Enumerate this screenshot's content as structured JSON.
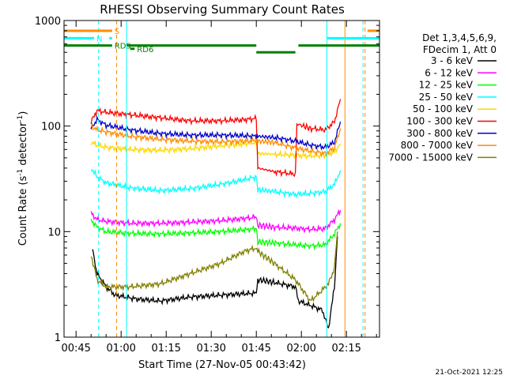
{
  "chart_data": {
    "type": "line",
    "title": "RHESSI Observing Summary Count Rates",
    "xlabel": "Start Time (27-Nov-05 00:43:42)",
    "ylabel_main": "Count Rate (s",
    "ylabel_sup1": "-1",
    "ylabel_mid": " detector",
    "ylabel_sup2": "-1",
    "ylabel_end": ")",
    "yscale": "log",
    "ylim": [
      1,
      1000
    ],
    "xlim_minutes": [
      -2,
      103
    ],
    "x_ticks": [
      {
        "t": 2,
        "label": "00:45"
      },
      {
        "t": 17,
        "label": "01:00"
      },
      {
        "t": 32,
        "label": "01:15"
      },
      {
        "t": 47,
        "label": "01:30"
      },
      {
        "t": 62,
        "label": "01:45"
      },
      {
        "t": 77,
        "label": "02:00"
      },
      {
        "t": 92,
        "label": "02:15"
      }
    ],
    "y_ticks": [
      {
        "v": 1,
        "label": "1"
      },
      {
        "v": 10,
        "label": "10"
      },
      {
        "v": 100,
        "label": "100"
      },
      {
        "v": 1000,
        "label": "1000"
      }
    ],
    "legend": {
      "placement": "right",
      "header1": "Det 1,3,4,5,6,9,",
      "header2": "FDecim 1, Att 0"
    },
    "series": [
      {
        "name": "3 - 6 keV",
        "color": "#000000",
        "values": [
          [
            7.5,
            7
          ],
          [
            9,
            4
          ],
          [
            12,
            3
          ],
          [
            15,
            2.5
          ],
          [
            22,
            2.3
          ],
          [
            30,
            2.2
          ],
          [
            40,
            2.4
          ],
          [
            50,
            2.5
          ],
          [
            60,
            2.6
          ],
          [
            62,
            2.6
          ],
          [
            62.5,
            3.5
          ],
          [
            68,
            3.3
          ],
          [
            75,
            3
          ],
          [
            76,
            2.2
          ],
          [
            80,
            2
          ],
          [
            84,
            1.8
          ],
          [
            86,
            1.2
          ],
          [
            88,
            3
          ],
          [
            89,
            9
          ]
        ]
      },
      {
        "name": "6 - 12 keV",
        "color": "#ff00ff",
        "values": [
          [
            7,
            15
          ],
          [
            9,
            13
          ],
          [
            12,
            12.5
          ],
          [
            20,
            12
          ],
          [
            30,
            12
          ],
          [
            40,
            12.3
          ],
          [
            50,
            12.7
          ],
          [
            60,
            13.5
          ],
          [
            62,
            13.8
          ],
          [
            62.5,
            11.5
          ],
          [
            68,
            11
          ],
          [
            75,
            10.8
          ],
          [
            80,
            10.5
          ],
          [
            85,
            10.7
          ],
          [
            88,
            13
          ],
          [
            90,
            16
          ]
        ]
      },
      {
        "name": "12 - 25 keV",
        "color": "#00ff00",
        "values": [
          [
            7,
            13
          ],
          [
            9,
            11
          ],
          [
            12,
            10
          ],
          [
            20,
            9.6
          ],
          [
            30,
            9.5
          ],
          [
            40,
            9.7
          ],
          [
            50,
            10
          ],
          [
            60,
            10.5
          ],
          [
            62,
            10.8
          ],
          [
            62.5,
            8
          ],
          [
            68,
            7.8
          ],
          [
            75,
            7.5
          ],
          [
            80,
            7.3
          ],
          [
            85,
            7.5
          ],
          [
            88,
            9.5
          ],
          [
            90,
            12
          ]
        ]
      },
      {
        "name": "25 - 50 keV",
        "color": "#00ffff",
        "values": [
          [
            7,
            40
          ],
          [
            9,
            33
          ],
          [
            12,
            29
          ],
          [
            20,
            26
          ],
          [
            30,
            24.5
          ],
          [
            40,
            25.5
          ],
          [
            50,
            28
          ],
          [
            58,
            31
          ],
          [
            62,
            33
          ],
          [
            62.5,
            25
          ],
          [
            68,
            24
          ],
          [
            75,
            22.5
          ],
          [
            80,
            23
          ],
          [
            85,
            24
          ],
          [
            88,
            28
          ],
          [
            90,
            38
          ]
        ]
      },
      {
        "name": "50 - 100 keV",
        "color": "#ffd700",
        "values": [
          [
            7,
            70
          ],
          [
            9,
            66
          ],
          [
            12,
            63
          ],
          [
            20,
            60
          ],
          [
            30,
            59
          ],
          [
            40,
            61
          ],
          [
            50,
            65
          ],
          [
            58,
            68
          ],
          [
            62,
            70
          ],
          [
            62.5,
            55
          ],
          [
            68,
            54
          ],
          [
            75,
            53
          ],
          [
            80,
            52
          ],
          [
            85,
            53
          ],
          [
            88,
            57
          ],
          [
            90,
            68
          ]
        ]
      },
      {
        "name": "100 - 300 keV",
        "color": "#ff0000",
        "values": [
          [
            7,
            110
          ],
          [
            9,
            140
          ],
          [
            12,
            135
          ],
          [
            20,
            128
          ],
          [
            30,
            120
          ],
          [
            40,
            112
          ],
          [
            50,
            112
          ],
          [
            58,
            115
          ],
          [
            62,
            118
          ],
          [
            62.5,
            40
          ],
          [
            68,
            37
          ],
          [
            75,
            35
          ],
          [
            75.5,
            105
          ],
          [
            80,
            95
          ],
          [
            85,
            92
          ],
          [
            88,
            110
          ],
          [
            90,
            180
          ]
        ]
      },
      {
        "name": "300 - 800 keV",
        "color": "#0000cd",
        "values": [
          [
            7,
            95
          ],
          [
            9,
            115
          ],
          [
            12,
            102
          ],
          [
            20,
            92
          ],
          [
            30,
            85
          ],
          [
            40,
            82
          ],
          [
            50,
            82
          ],
          [
            58,
            81
          ],
          [
            62,
            80
          ],
          [
            62.5,
            80
          ],
          [
            68,
            78
          ],
          [
            75,
            72
          ],
          [
            80,
            66
          ],
          [
            85,
            63
          ],
          [
            88,
            70
          ],
          [
            90,
            110
          ]
        ]
      },
      {
        "name": "800 - 7000 keV",
        "color": "#ff8c00",
        "values": [
          [
            7,
            100
          ],
          [
            9,
            92
          ],
          [
            12,
            88
          ],
          [
            20,
            80
          ],
          [
            30,
            75
          ],
          [
            40,
            72
          ],
          [
            50,
            71
          ],
          [
            58,
            72
          ],
          [
            62,
            73
          ],
          [
            62.5,
            72
          ],
          [
            68,
            70
          ],
          [
            75,
            62
          ],
          [
            80,
            58
          ],
          [
            85,
            55
          ],
          [
            88,
            62
          ],
          [
            90,
            95
          ]
        ]
      },
      {
        "name": "7000 - 15000 keV",
        "color": "#808000",
        "values": [
          [
            7,
            6
          ],
          [
            9,
            3.5
          ],
          [
            12,
            3
          ],
          [
            20,
            3
          ],
          [
            30,
            3.2
          ],
          [
            40,
            4
          ],
          [
            50,
            5
          ],
          [
            58,
            6.5
          ],
          [
            62,
            7
          ],
          [
            62.5,
            6.5
          ],
          [
            68,
            5
          ],
          [
            75,
            3.5
          ],
          [
            80,
            2.2
          ],
          [
            84,
            2.8
          ],
          [
            86,
            3.2
          ],
          [
            88,
            4.5
          ],
          [
            89,
            10
          ]
        ]
      }
    ],
    "vertical_lines": [
      {
        "t": 9.5,
        "color": "#00ffff",
        "style": "dashed"
      },
      {
        "t": 15.5,
        "color": "#ff8c00",
        "style": "dashed"
      },
      {
        "t": 18.8,
        "color": "#00ffff",
        "style": "solid"
      },
      {
        "t": 85.5,
        "color": "#00ffff",
        "style": "solid"
      },
      {
        "t": 91.5,
        "color": "#ff8c00",
        "style": "solid"
      },
      {
        "t": 97.5,
        "color": "#00ffff",
        "style": "dashed"
      },
      {
        "t": 98.2,
        "color": "#ff8c00",
        "style": "dashed"
      }
    ],
    "flags": [
      {
        "label": "S",
        "color": "#ff8c00",
        "y": 800,
        "segments": [
          [
            -2,
            14
          ],
          [
            99,
            103
          ]
        ]
      },
      {
        "label": "N",
        "color": "#00ffff",
        "y": 680,
        "segments": [
          [
            -2,
            8
          ],
          [
            13,
            14
          ],
          [
            85.5,
            103
          ]
        ]
      },
      {
        "label": "RD6",
        "color": "#008000",
        "y": 540,
        "segments": [
          [
            20,
            21.5
          ]
        ]
      },
      {
        "label": "RD9",
        "color": "#008000",
        "y": 580,
        "segments": [
          [
            -2,
            14
          ],
          [
            19,
            62
          ],
          [
            76,
            103
          ]
        ]
      },
      {
        "label": "",
        "color": "#008000",
        "y": 500,
        "segments": [
          [
            62,
            75
          ]
        ]
      }
    ],
    "footer_date": "21-Oct-2021 12:25"
  }
}
